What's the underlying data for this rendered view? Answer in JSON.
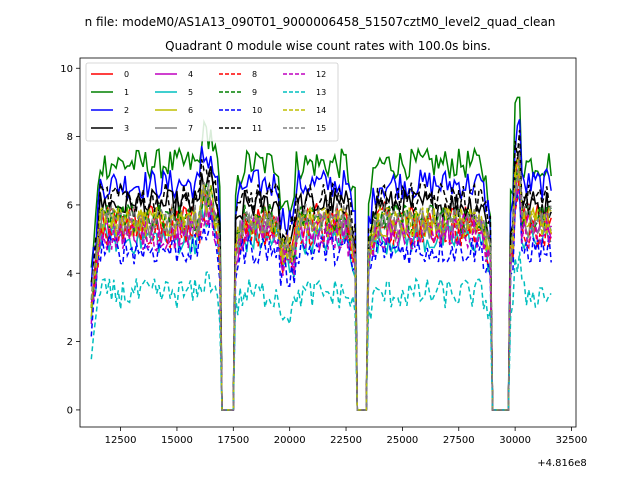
{
  "chart_data": {
    "type": "line",
    "suptitle": "n file: modeM0/AS1A13_090T01_9000006458_51507cztM0_level2_quad_clean",
    "title": "Quadrant 0 module wise count rates with 100.0s bins.",
    "xlabel": "",
    "ylabel": "",
    "x_offset_label": "+4.816e8",
    "xlim": [
      10700,
      32700
    ],
    "ylim": [
      -0.5,
      10.3
    ],
    "x_ticks": [
      12500,
      15000,
      17500,
      20000,
      22500,
      25000,
      27500,
      30000,
      32500
    ],
    "x_tick_labels": [
      "12500",
      "15000",
      "17500",
      "20000",
      "22500",
      "25000",
      "27500",
      "30000",
      "32500"
    ],
    "y_ticks": [
      0,
      2,
      4,
      6,
      8,
      10
    ],
    "y_tick_labels": [
      "0",
      "2",
      "4",
      "6",
      "8",
      "10"
    ],
    "grid": false,
    "legend_position": "upper-left",
    "legend_columns": 4,
    "gaps": [
      [
        16900,
        17550
      ],
      [
        22900,
        23500
      ],
      [
        28900,
        29800
      ]
    ],
    "series": [
      {
        "name": "0",
        "color": "#ff0000",
        "style": "solid",
        "level": 5.6
      },
      {
        "name": "1",
        "color": "#008000",
        "style": "solid",
        "level": 7.2
      },
      {
        "name": "2",
        "color": "#0000ff",
        "style": "solid",
        "level": 6.6
      },
      {
        "name": "3",
        "color": "#000000",
        "style": "solid",
        "level": 6.0
      },
      {
        "name": "4",
        "color": "#bf00bf",
        "style": "solid",
        "level": 5.3
      },
      {
        "name": "5",
        "color": "#00bfbf",
        "style": "solid",
        "level": 5.0
      },
      {
        "name": "6",
        "color": "#bfbf00",
        "style": "solid",
        "level": 5.5
      },
      {
        "name": "7",
        "color": "#808080",
        "style": "solid",
        "level": 5.4
      },
      {
        "name": "8",
        "color": "#ff0000",
        "style": "dashed",
        "level": 5.2
      },
      {
        "name": "9",
        "color": "#008000",
        "style": "dashed",
        "level": 5.6
      },
      {
        "name": "10",
        "color": "#0000ff",
        "style": "dashed",
        "level": 4.7
      },
      {
        "name": "11",
        "color": "#000000",
        "style": "dashed",
        "level": 6.2
      },
      {
        "name": "12",
        "color": "#bf00bf",
        "style": "dashed",
        "level": 5.1
      },
      {
        "name": "13",
        "color": "#00bfbf",
        "style": "dashed",
        "level": 3.4
      },
      {
        "name": "14",
        "color": "#bfbf00",
        "style": "dashed",
        "level": 5.5
      },
      {
        "name": "15",
        "color": "#808080",
        "style": "dashed",
        "level": 5.6
      }
    ]
  }
}
